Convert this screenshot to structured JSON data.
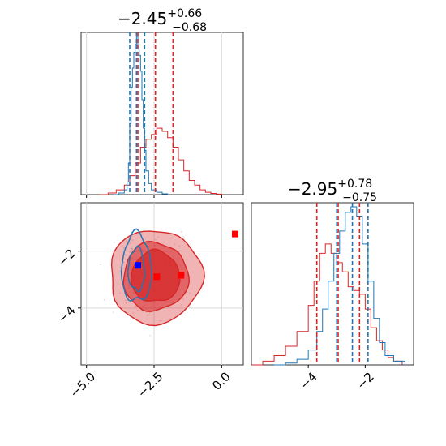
{
  "chart_data": {
    "type": "corner",
    "colors": {
      "blue": "#1f77b4",
      "red": "#d62728",
      "marker_blue": "#0000ff",
      "marker_red": "#ff0000",
      "grid": "#d9d9d9"
    },
    "panels": {
      "x_marginal": {
        "title": {
          "main": "−2.45",
          "sup": "+0.66",
          "sub": "−0.68"
        },
        "xlim": [
          -5.2,
          0.8
        ],
        "grid_x": [
          -5.0,
          -2.5,
          0.0
        ],
        "quantile_lines": {
          "blue": [
            -3.4,
            -3.15,
            -2.85
          ],
          "red": [
            -3.1,
            -2.45,
            -1.8
          ]
        },
        "hist_blue": {
          "x": [
            -4.0,
            -3.8,
            -3.6,
            -3.5,
            -3.45,
            -3.4,
            -3.35,
            -3.3,
            -3.25,
            -3.2,
            -3.15,
            -3.1,
            -3.05,
            -3.0,
            -2.95,
            -2.9,
            -2.85,
            -2.8,
            -2.7,
            -2.6,
            -2.4,
            -2.2,
            -2.0
          ],
          "y": [
            0.0,
            0.01,
            0.03,
            0.08,
            0.2,
            0.45,
            0.68,
            0.8,
            0.9,
            0.95,
            1.0,
            0.92,
            0.88,
            0.78,
            0.6,
            0.42,
            0.28,
            0.15,
            0.07,
            0.03,
            0.015,
            0.005,
            0.0
          ]
        },
        "hist_red": {
          "x": [
            -4.5,
            -4.2,
            -3.9,
            -3.6,
            -3.4,
            -3.2,
            -3.0,
            -2.8,
            -2.6,
            -2.4,
            -2.2,
            -2.0,
            -1.8,
            -1.6,
            -1.4,
            -1.2,
            -1.0,
            -0.8,
            -0.6,
            -0.4,
            -0.2,
            0.0
          ],
          "y": [
            0.0,
            0.01,
            0.03,
            0.06,
            0.12,
            0.2,
            0.3,
            0.35,
            0.38,
            0.42,
            0.4,
            0.36,
            0.3,
            0.22,
            0.15,
            0.09,
            0.06,
            0.03,
            0.015,
            0.008,
            0.003,
            0.0
          ]
        }
      },
      "joint": {
        "xlim": [
          -5.2,
          0.8
        ],
        "ylim": [
          -6.0,
          -0.3
        ],
        "grid_x": [
          -5.0,
          -2.5,
          0.0
        ],
        "grid_y": [
          -2,
          -4
        ],
        "red_contours": [
          {
            "cx": -2.45,
            "cy": -2.9,
            "rx": 1.7,
            "ry": 1.65,
            "fill_opacity": 0.35
          },
          {
            "cx": -2.45,
            "cy": -2.9,
            "rx": 1.2,
            "ry": 1.2,
            "fill_opacity": 0.55
          },
          {
            "cx": -2.45,
            "cy": -2.9,
            "rx": 0.9,
            "ry": 0.9,
            "fill_opacity": 0.75
          }
        ],
        "blue_contours": [
          {
            "cx": -3.15,
            "cy": -2.6,
            "rx": 0.55,
            "ry": 1.2
          },
          {
            "cx": -3.15,
            "cy": -2.65,
            "rx": 0.3,
            "ry": 0.75
          }
        ],
        "markers": [
          {
            "x": -3.1,
            "y": -2.5,
            "color": "blue"
          },
          {
            "x": -2.4,
            "y": -2.9,
            "color": "red"
          },
          {
            "x": -1.5,
            "y": -2.85,
            "color": "red"
          },
          {
            "x": 0.5,
            "y": -1.4,
            "color": "red"
          }
        ]
      },
      "y_marginal": {
        "title": {
          "main": "−2.95",
          "sup": "+0.78",
          "sub": "−0.75"
        },
        "xlim": [
          -6.0,
          -0.3
        ],
        "quantile_lines": {
          "blue": [
            -3.0,
            -2.45,
            -1.9
          ],
          "red": [
            -3.7,
            -2.95,
            -2.2
          ]
        },
        "hist_blue": {
          "x": [
            -5.2,
            -4.8,
            -4.4,
            -4.0,
            -3.7,
            -3.5,
            -3.3,
            -3.1,
            -2.9,
            -2.7,
            -2.5,
            -2.3,
            -2.1,
            -1.9,
            -1.7,
            -1.5,
            -1.3,
            -1.0,
            -0.6
          ],
          "y": [
            0.0,
            0.01,
            0.03,
            0.08,
            0.18,
            0.3,
            0.45,
            0.6,
            0.72,
            0.82,
            0.85,
            0.8,
            0.65,
            0.45,
            0.25,
            0.12,
            0.05,
            0.02,
            0.0
          ]
        },
        "hist_red": {
          "x": [
            -6.0,
            -5.6,
            -5.2,
            -4.8,
            -4.4,
            -4.0,
            -3.8,
            -3.6,
            -3.4,
            -3.2,
            -3.0,
            -2.8,
            -2.6,
            -2.4,
            -2.2,
            -2.0,
            -1.8,
            -1.6,
            -1.4,
            -1.2,
            -1.0,
            -0.7
          ],
          "y": [
            0.0,
            0.02,
            0.05,
            0.1,
            0.18,
            0.32,
            0.45,
            0.6,
            0.65,
            0.6,
            0.55,
            0.5,
            0.42,
            0.4,
            0.38,
            0.3,
            0.2,
            0.13,
            0.08,
            0.04,
            0.02,
            0.0
          ]
        }
      }
    },
    "tick_labels": {
      "joint_x": [
        "−5.0",
        "−2.5",
        "0.0"
      ],
      "joint_y": [
        "−2",
        "−4"
      ],
      "ymarg_x": [
        "−4",
        "−2"
      ]
    }
  }
}
